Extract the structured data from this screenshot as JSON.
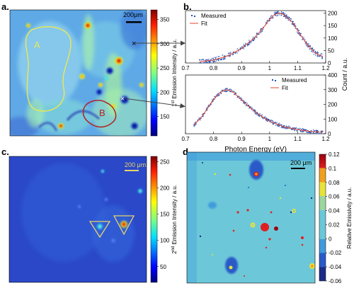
{
  "panel_labels": {
    "a": "a.",
    "b": "b.",
    "c": "c.",
    "d": "d."
  },
  "colors": {
    "measured": "#1f4fb3",
    "fit": "#e8452c",
    "region_a": "#e6e65a",
    "region_b": "#b22222",
    "triangle": "#e8d36a"
  },
  "chart_data": [
    {
      "panel": "a",
      "type": "heatmap",
      "title": "",
      "scalebar_label": "200μm",
      "region_labels": [
        "A",
        "B"
      ],
      "colorbar": {
        "label": "1st Emission Intensity / a.u.",
        "label_parts": {
          "num": "1",
          "sup": "st",
          "rest": " Emission Intensity / a.u."
        },
        "range": [
          110,
          370
        ],
        "ticks": [
          150,
          200,
          250,
          300,
          350
        ],
        "colormap": "jet"
      }
    },
    {
      "panel": "b-top",
      "type": "scatter",
      "legend": [
        "Measured",
        "Fit"
      ],
      "legend_position": "top-left",
      "xlim": [
        0.7,
        1.2
      ],
      "ylim": [
        0,
        210
      ],
      "xticks": [
        0.7,
        0.8,
        0.9,
        1,
        1.1,
        1.2
      ],
      "yticks": [
        0,
        50,
        100,
        150,
        200
      ],
      "fit_curve": {
        "x": [
          0.75,
          0.8,
          0.85,
          0.9,
          0.95,
          0.98,
          1.0,
          1.02,
          1.035,
          1.05,
          1.08,
          1.1,
          1.13,
          1.16,
          1.19
        ],
        "y": [
          5,
          12,
          28,
          58,
          105,
          145,
          175,
          196,
          200,
          195,
          165,
          130,
          80,
          42,
          25
        ]
      }
    },
    {
      "panel": "b-bottom",
      "type": "scatter",
      "legend": [
        "Measured",
        "Fit"
      ],
      "legend_position": "top-right",
      "xlabel": "Photon Energy (eV)",
      "ylabel": "Count / a.u.",
      "xlim": [
        0.7,
        1.2
      ],
      "ylim": [
        0,
        400
      ],
      "xticks": [
        0.7,
        0.8,
        0.9,
        1,
        1.1,
        1.2
      ],
      "yticks": [
        0,
        100,
        200,
        300,
        400
      ],
      "fit_curve": {
        "x": [
          0.73,
          0.76,
          0.8,
          0.83,
          0.85,
          0.87,
          0.9,
          0.95,
          1.0,
          1.05,
          1.1,
          1.15,
          1.19
        ],
        "y": [
          60,
          120,
          235,
          290,
          300,
          285,
          230,
          145,
          85,
          48,
          28,
          15,
          10
        ]
      }
    },
    {
      "panel": "c",
      "type": "heatmap",
      "scalebar_label": "200 μm",
      "colorbar": {
        "label": "2nd Emission Intensity / a.u.",
        "label_parts": {
          "num": "2",
          "sup": "nd",
          "rest": " Emission Intensity / a.u."
        },
        "range": [
          20,
          260
        ],
        "ticks": [
          50,
          100,
          150,
          200,
          250
        ],
        "colormap": "jet"
      }
    },
    {
      "panel": "d",
      "type": "heatmap",
      "scalebar_label": "200 μm",
      "colorbar": {
        "label": "Relative Emissivity / a.u.",
        "range": [
          -0.06,
          0.12
        ],
        "ticks": [
          -0.06,
          -0.04,
          -0.02,
          0,
          0.02,
          0.04,
          0.06,
          0.08,
          0.1,
          0.12
        ],
        "tick_labels": [
          "-0.06",
          "-0.04",
          "-0.02",
          "0",
          "0.02",
          "0.04",
          "0.06",
          "0.08",
          "0.1",
          "0.12"
        ],
        "colormap": "jet-discrete"
      }
    }
  ]
}
